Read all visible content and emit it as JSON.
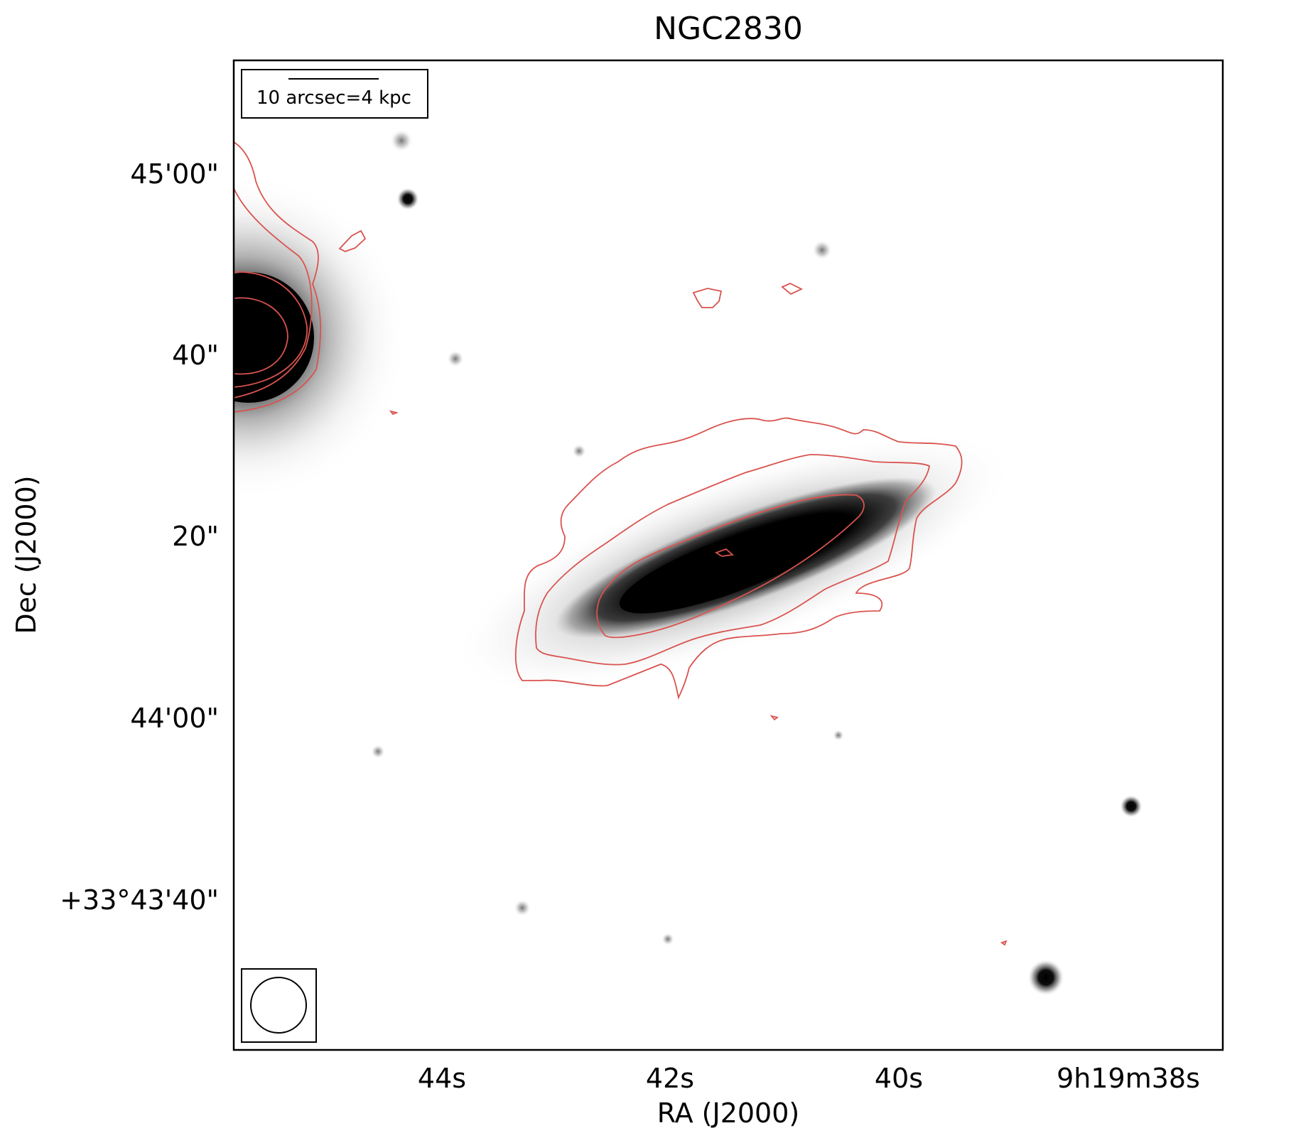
{
  "figure": {
    "title": "NGC2830",
    "xlabel": "RA (J2000)",
    "ylabel": "Dec (J2000)",
    "x_ticks": [
      "44s",
      "42s",
      "40s",
      "9h19m38s"
    ],
    "y_ticks": [
      "45'00\"",
      "40\"",
      "20\"",
      "44'00\"",
      "+33°43'40\""
    ],
    "scale_bar_label": "10 arcsec=4 kpc",
    "contour_color": "#d9534f",
    "image_colormap": "gray_r",
    "beam_shape": "circle",
    "source_of_contours": "radio"
  }
}
